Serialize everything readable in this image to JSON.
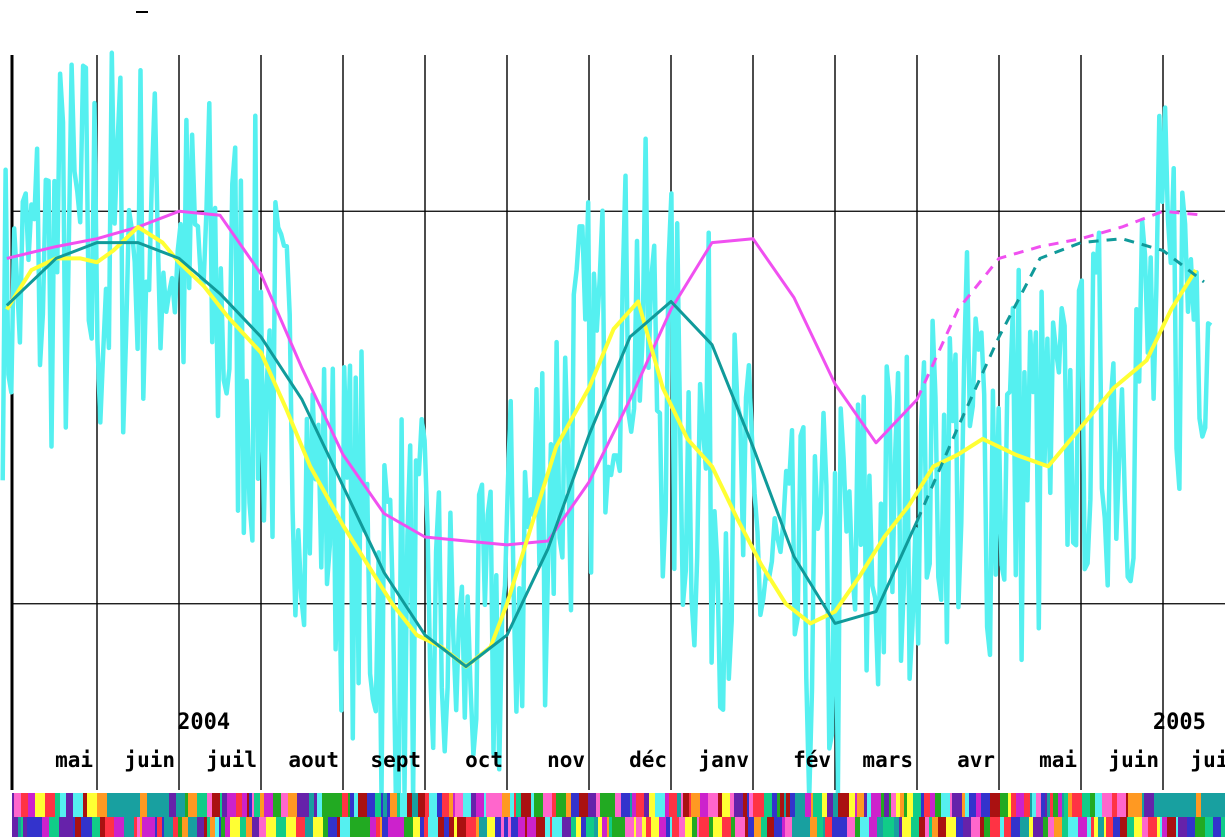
{
  "chart_data": {
    "type": "line",
    "title": "",
    "xlabel": "",
    "ylabel": "",
    "grid": true,
    "colors": {
      "raw": "#55F0F0",
      "smoothed": "#FFFF33",
      "fitted": "#109A9A",
      "envelope": "#F050F0",
      "grid": "#000000"
    },
    "x_axis": {
      "unit": "months since start (0 = start of mai 2004)",
      "range": [
        -0.15,
        14.6
      ],
      "months": [
        {
          "label": "mai",
          "x": 0
        },
        {
          "label": "juin",
          "x": 1
        },
        {
          "label": "juil",
          "x": 2
        },
        {
          "label": "aout",
          "x": 3
        },
        {
          "label": "sept",
          "x": 4
        },
        {
          "label": "oct",
          "x": 5
        },
        {
          "label": "nov",
          "x": 6
        },
        {
          "label": "déc",
          "x": 7
        },
        {
          "label": "janv",
          "x": 8
        },
        {
          "label": "fév",
          "x": 9
        },
        {
          "label": "mars",
          "x": 10
        },
        {
          "label": "avr",
          "x": 11
        },
        {
          "label": "mai",
          "x": 12
        },
        {
          "label": "juin",
          "x": 13
        },
        {
          "label": "juil",
          "x": 14
        }
      ],
      "year_labels": [
        {
          "label": "2004",
          "x": 2.3
        },
        {
          "label": "2005",
          "x": 14.2
        }
      ]
    },
    "y_axis": {
      "range": [
        -100,
        100
      ],
      "gridlines": [
        -50,
        50
      ]
    },
    "series": [
      {
        "name": "",
        "style": "envelope",
        "x": [
          -0.1,
          0.5,
          1.0,
          1.5,
          2.0,
          2.5,
          3.0,
          3.5,
          4.0,
          4.5,
          5.0,
          5.5,
          6.0,
          6.5,
          7.0,
          7.5,
          8.0,
          8.5,
          9.0,
          9.5,
          10.0,
          10.5,
          11.0,
          11.5,
          12.0,
          12.5,
          13.0,
          13.5,
          14.0,
          14.5
        ],
        "y": [
          38,
          41,
          43,
          46,
          50,
          49,
          34,
          10,
          -12,
          -27,
          -33,
          -34,
          -35,
          -34,
          -19,
          2,
          25,
          42,
          43,
          28,
          6,
          -9,
          2,
          25,
          38,
          41,
          43,
          46,
          50,
          49
        ],
        "dashed_from": 11.1
      },
      {
        "name": "",
        "style": "fitted",
        "x": [
          -0.1,
          0.5,
          1.0,
          1.5,
          2.0,
          2.5,
          3.0,
          3.5,
          4.0,
          4.5,
          5.0,
          5.5,
          6.0,
          6.5,
          7.0,
          7.5,
          8.0,
          8.5,
          9.0,
          9.5,
          10.0,
          10.5,
          11.0,
          11.5,
          12.0,
          12.5,
          13.0,
          13.5,
          14.0,
          14.5
        ],
        "y": [
          26,
          38,
          42,
          42,
          38,
          29,
          18,
          2,
          -20,
          -42,
          -58,
          -66,
          -58,
          -36,
          -7,
          18,
          27,
          16,
          -10,
          -38,
          -55,
          -52,
          -29,
          -5,
          18,
          38,
          42,
          43,
          40,
          32
        ],
        "dashed_from": 11.1
      },
      {
        "name": "",
        "style": "smoothed",
        "x": [
          -0.1,
          0.2,
          0.5,
          0.8,
          1.0,
          1.2,
          1.5,
          1.8,
          2.0,
          2.3,
          2.6,
          3.0,
          3.3,
          3.6,
          4.0,
          4.3,
          4.6,
          4.9,
          5.2,
          5.5,
          5.8,
          6.0,
          6.3,
          6.6,
          7.0,
          7.3,
          7.6,
          7.9,
          8.2,
          8.5,
          8.8,
          9.1,
          9.4,
          9.7,
          10.0,
          10.3,
          10.6,
          10.9,
          11.2,
          11.5,
          11.8,
          12.2,
          12.6,
          13.0,
          13.4,
          13.8,
          14.1,
          14.4
        ],
        "y": [
          25,
          35,
          38,
          38,
          37,
          40,
          46,
          42,
          37,
          31,
          23,
          14,
          0,
          -15,
          -30,
          -40,
          -50,
          -58,
          -61,
          -66,
          -61,
          -50,
          -30,
          -10,
          5,
          20,
          27,
          5,
          -8,
          -15,
          -28,
          -40,
          -50,
          -55,
          -52,
          -43,
          -33,
          -25,
          -15,
          -12,
          -8,
          -12,
          -15,
          -5,
          5,
          12,
          25,
          35
        ]
      }
    ]
  }
}
